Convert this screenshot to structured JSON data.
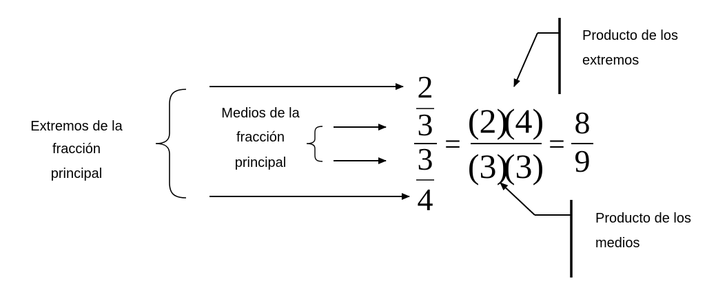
{
  "labels": {
    "extremos_line1": "Extremos de la",
    "extremos_line2": "fracción",
    "extremos_line3": "principal",
    "medios_line1": "Medios de la",
    "medios_line2": "fracción",
    "medios_line3": "principal",
    "producto_extremos_line1": "Producto de los",
    "producto_extremos_line2": "extremos",
    "producto_medios_line1": "Producto de los",
    "producto_medios_line2": "medios"
  },
  "equation": {
    "outer_numerator": "2",
    "inner_numerator_denominator": "3",
    "inner_denominator_numerator": "3",
    "outer_denominator": "4",
    "equals": "=",
    "product_numerator_a": "(2)",
    "product_numerator_b": "(4)",
    "product_denominator_a": "(3)",
    "product_denominator_b": "(3)",
    "result_numerator": "8",
    "result_denominator": "9"
  }
}
